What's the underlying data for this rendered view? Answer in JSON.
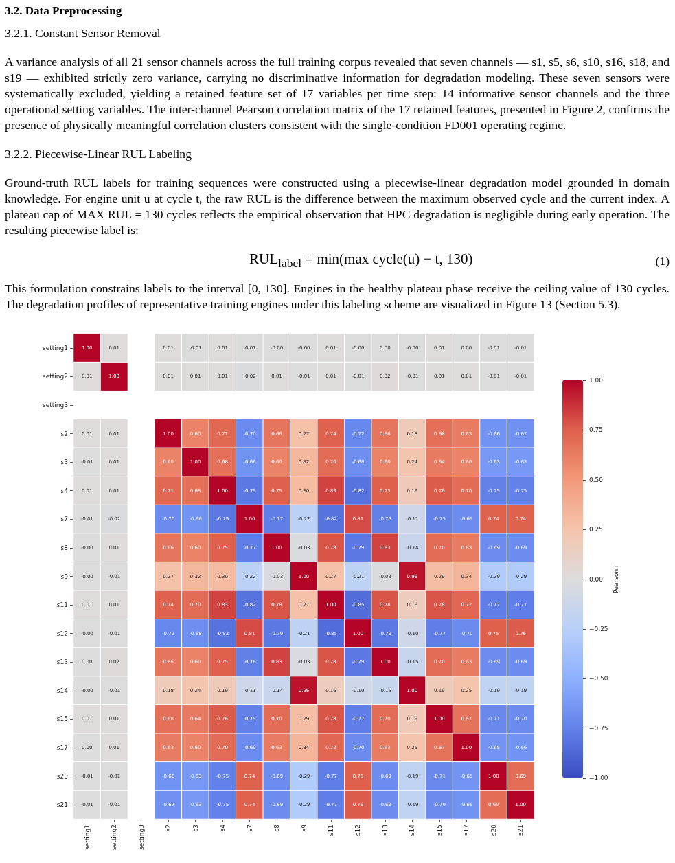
{
  "chart_data": {
    "type": "heatmap",
    "title": "3.2. Data Preprocessing",
    "annotations": [
      "3.2.1. Constant Sensor Removal",
      "A variance analysis of all 21 sensor channels across the full training corpus revealed that seven channels — s1, s5, s6, s10, s16, s18, and s19 — exhibited strictly zero variance, carrying no discriminative information for degradation modeling. These seven sensors were systematically excluded, yielding a retained feature set of 17 variables per time step: 14 informative sensor channels and the three operational setting variables. The inter-channel Pearson correlation matrix of the 17 retained features, presented in Figure 2, confirms the presence of physically meaningful correlation clusters consistent with the single-condition FD001 operating regime.",
      "3.2.2. Piecewise-Linear RUL Labeling",
      "Ground-truth RUL labels for training sequences were constructed using a piecewise-linear degradation model grounded in domain knowledge. For engine unit u at cycle t, the raw RUL is the difference between the maximum observed cycle and the current index. A plateau cap of MAX RUL = 130 cycles reflects the empirical observation that HPC degradation is negligible during early operation. The resulting piecewise label is:",
      "RUL$_{label}$ = min(max cycle(u) − t, 130)",
      "(1)",
      "This formulation constrains labels to the interval [0, 130]. Engines in the healthy plateau phase receive the ceiling value of 130 cycles. The degradation profiles of representative training engines under this labeling scheme are visualized in Figure 13 (Section 5.3)."
    ],
    "categories": [
      "setting1",
      "setting2",
      "setting3",
      "s2",
      "s3",
      "s4",
      "s7",
      "s8",
      "s9",
      "s11",
      "s12",
      "s13",
      "s14",
      "s15",
      "s17",
      "s20",
      "s21"
    ],
    "y_categories": [
      "setting1",
      "setting2",
      "setting3",
      "s2",
      "s3",
      "s4",
      "s7",
      "s8",
      "s9",
      "s11",
      "s12",
      "s13",
      "s14",
      "s15",
      "s17",
      "s20",
      "s21"
    ],
    "cells": [
      [
        1.0,
        0.01,
        null,
        0.01,
        -0.01,
        0.01,
        -0.01,
        0,
        0,
        0.01,
        0,
        0,
        0,
        0.01,
        0,
        -0.01,
        -0.01
      ],
      [
        0.01,
        1.0,
        null,
        0.01,
        0.01,
        0.01,
        -0.02,
        0.01,
        -0.01,
        0.01,
        -0.01,
        0.02,
        -0.01,
        0.01,
        0.01,
        -0.01,
        -0.01
      ],
      [
        null,
        null,
        null,
        null,
        null,
        null,
        null,
        null,
        null,
        null,
        null,
        null,
        null,
        null,
        null,
        null,
        null
      ],
      [
        0.01,
        0.01,
        null,
        1.0,
        0.6,
        0.71,
        -0.7,
        0.66,
        0.27,
        0.74,
        -0.72,
        0.66,
        0.18,
        0.68,
        0.63,
        -0.66,
        -0.67
      ],
      [
        -0.01,
        0.01,
        null,
        0.6,
        1.0,
        0.68,
        -0.66,
        0.6,
        0.32,
        0.7,
        -0.68,
        0.6,
        0.24,
        0.64,
        0.6,
        -0.63,
        -0.63
      ],
      [
        0.01,
        0.01,
        null,
        0.71,
        0.68,
        1.0,
        -0.79,
        0.75,
        0.3,
        0.83,
        -0.82,
        0.75,
        0.19,
        0.76,
        0.7,
        -0.75,
        -0.75
      ],
      [
        -0.01,
        -0.02,
        null,
        -0.7,
        -0.66,
        -0.79,
        1.0,
        -0.77,
        -0.22,
        -0.82,
        0.81,
        -0.76,
        -0.11,
        -0.75,
        -0.69,
        0.74,
        0.74
      ],
      [
        0,
        0.01,
        null,
        0.66,
        0.6,
        0.75,
        -0.77,
        1.0,
        -0.03,
        0.78,
        -0.79,
        0.83,
        -0.14,
        0.7,
        0.63,
        -0.69,
        -0.69
      ],
      [
        0,
        -0.01,
        null,
        0.27,
        0.32,
        0.3,
        -0.22,
        -0.03,
        1.0,
        0.27,
        -0.21,
        -0.03,
        0.96,
        0.29,
        0.34,
        -0.29,
        -0.29
      ],
      [
        0.01,
        0.01,
        null,
        0.74,
        0.7,
        0.83,
        -0.82,
        0.78,
        0.27,
        1.0,
        -0.85,
        0.78,
        0.16,
        0.78,
        0.72,
        -0.77,
        -0.77
      ],
      [
        0,
        -0.01,
        null,
        -0.72,
        -0.68,
        -0.82,
        0.81,
        -0.79,
        -0.21,
        -0.85,
        1.0,
        -0.79,
        -0.1,
        -0.77,
        -0.7,
        0.75,
        0.76
      ],
      [
        0,
        0.02,
        null,
        0.66,
        0.6,
        0.75,
        -0.76,
        0.83,
        -0.03,
        0.78,
        -0.79,
        1.0,
        -0.15,
        0.7,
        0.63,
        -0.69,
        -0.69
      ],
      [
        0,
        -0.01,
        null,
        0.18,
        0.24,
        0.19,
        -0.11,
        -0.14,
        0.96,
        0.16,
        -0.1,
        -0.15,
        1.0,
        0.19,
        0.25,
        -0.19,
        -0.19
      ],
      [
        0.01,
        0.01,
        null,
        0.68,
        0.64,
        0.76,
        -0.75,
        0.7,
        0.29,
        0.78,
        -0.77,
        0.7,
        0.19,
        1.0,
        0.67,
        -0.71,
        -0.7
      ],
      [
        0,
        0.01,
        null,
        0.63,
        0.6,
        0.7,
        -0.69,
        0.63,
        0.34,
        0.72,
        -0.7,
        0.63,
        0.25,
        0.67,
        1.0,
        -0.65,
        -0.66
      ],
      [
        -0.01,
        -0.01,
        null,
        -0.66,
        -0.63,
        -0.75,
        0.74,
        -0.69,
        -0.29,
        -0.77,
        0.75,
        -0.69,
        -0.19,
        -0.71,
        -0.65,
        1.0,
        0.69
      ],
      [
        -0.01,
        -0.01,
        null,
        -0.67,
        -0.63,
        -0.75,
        0.74,
        -0.69,
        -0.29,
        -0.77,
        0.76,
        -0.69,
        -0.19,
        -0.7,
        -0.66,
        0.69,
        1.0
      ]
    ],
    "cell_labels": [
      [
        "1.00",
        "0.01",
        null,
        "0.01",
        "-0.01",
        "0.01",
        "-0.01",
        "-0.00",
        "-0.00",
        "0.01",
        "-0.00",
        "0.00",
        "-0.00",
        "0.01",
        "0.00",
        "-0.01",
        "-0.01"
      ],
      [
        "0.01",
        "1.00",
        null,
        "0.01",
        "0.01",
        "0.01",
        "-0.02",
        "0.01",
        "-0.01",
        "0.01",
        "-0.01",
        "0.02",
        "-0.01",
        "0.01",
        "0.01",
        "-0.01",
        "-0.01"
      ],
      [
        null,
        null,
        null,
        null,
        null,
        null,
        null,
        null,
        null,
        null,
        null,
        null,
        null,
        null,
        null,
        null,
        null
      ],
      [
        "0.01",
        "0.01",
        null,
        "1.00",
        "0.60",
        "0.71",
        "-0.70",
        "0.66",
        "0.27",
        "0.74",
        "-0.72",
        "0.66",
        "0.18",
        "0.68",
        "0.63",
        "-0.66",
        "-0.67"
      ],
      [
        "-0.01",
        "0.01",
        null,
        "0.60",
        "1.00",
        "0.68",
        "-0.66",
        "0.60",
        "0.32",
        "0.70",
        "-0.68",
        "0.60",
        "0.24",
        "0.64",
        "0.60",
        "-0.63",
        "-0.63"
      ],
      [
        "0.01",
        "0.01",
        null,
        "0.71",
        "0.68",
        "1.00",
        "-0.79",
        "0.75",
        "0.30",
        "0.83",
        "-0.82",
        "0.75",
        "0.19",
        "0.76",
        "0.70",
        "-0.75",
        "-0.75"
      ],
      [
        "-0.01",
        "-0.02",
        null,
        "-0.70",
        "-0.66",
        "-0.79",
        "1.00",
        "-0.77",
        "-0.22",
        "-0.82",
        "0.81",
        "-0.76",
        "-0.11",
        "-0.75",
        "-0.69",
        "0.74",
        "0.74"
      ],
      [
        "-0.00",
        "0.01",
        null,
        "0.66",
        "0.60",
        "0.75",
        "-0.77",
        "1.00",
        "-0.03",
        "0.78",
        "-0.79",
        "0.83",
        "-0.14",
        "0.70",
        "0.63",
        "-0.69",
        "-0.69"
      ],
      [
        "-0.00",
        "-0.01",
        null,
        "0.27",
        "0.32",
        "0.30",
        "-0.22",
        "-0.03",
        "1.00",
        "0.27",
        "-0.21",
        "-0.03",
        "0.96",
        "0.29",
        "0.34",
        "-0.29",
        "-0.29"
      ],
      [
        "0.01",
        "0.01",
        null,
        "0.74",
        "0.70",
        "0.83",
        "-0.82",
        "0.78",
        "0.27",
        "1.00",
        "-0.85",
        "0.78",
        "0.16",
        "0.78",
        "0.72",
        "-0.77",
        "-0.77"
      ],
      [
        "-0.00",
        "-0.01",
        null,
        "-0.72",
        "-0.68",
        "-0.82",
        "0.81",
        "-0.79",
        "-0.21",
        "-0.85",
        "1.00",
        "-0.79",
        "-0.10",
        "-0.77",
        "-0.70",
        "0.75",
        "0.76"
      ],
      [
        "0.00",
        "0.02",
        null,
        "0.66",
        "0.60",
        "0.75",
        "-0.76",
        "0.83",
        "-0.03",
        "0.78",
        "-0.79",
        "1.00",
        "-0.15",
        "0.70",
        "0.63",
        "-0.69",
        "-0.69"
      ],
      [
        "-0.00",
        "-0.01",
        null,
        "0.18",
        "0.24",
        "0.19",
        "-0.11",
        "-0.14",
        "0.96",
        "0.16",
        "-0.10",
        "-0.15",
        "1.00",
        "0.19",
        "0.25",
        "-0.19",
        "-0.19"
      ],
      [
        "0.01",
        "0.01",
        null,
        "0.68",
        "0.64",
        "0.76",
        "-0.75",
        "0.70",
        "0.29",
        "0.78",
        "-0.77",
        "0.70",
        "0.19",
        "1.00",
        "0.67",
        "-0.71",
        "-0.70"
      ],
      [
        "0.00",
        "0.01",
        null,
        "0.63",
        "0.60",
        "0.70",
        "-0.69",
        "0.63",
        "0.34",
        "0.72",
        "-0.70",
        "0.63",
        "0.25",
        "0.67",
        "1.00",
        "-0.65",
        "-0.66"
      ],
      [
        "-0.01",
        "-0.01",
        null,
        "-0.66",
        "-0.63",
        "-0.75",
        "0.74",
        "-0.69",
        "-0.29",
        "-0.77",
        "0.75",
        "-0.69",
        "-0.19",
        "-0.71",
        "-0.65",
        "1.00",
        "0.69"
      ],
      [
        "-0.01",
        "-0.01",
        null,
        "-0.67",
        "-0.63",
        "-0.75",
        "0.74",
        "-0.69",
        "-0.29",
        "-0.77",
        "0.76",
        "-0.69",
        "-0.19",
        "-0.70",
        "-0.66",
        "0.69",
        "1.00"
      ]
    ],
    "clim": [
      -1,
      1
    ],
    "cticks": [
      {
        "value": 1,
        "label": "1.00"
      },
      {
        "value": 0.75,
        "label": "0.75"
      },
      {
        "value": 0.5,
        "label": "0.50"
      },
      {
        "value": 0.25,
        "label": "0.25"
      },
      {
        "value": 0,
        "label": "0.00"
      },
      {
        "value": -0.25,
        "label": "−0.25"
      },
      {
        "value": -0.5,
        "label": "−0.50"
      },
      {
        "value": -0.75,
        "label": "−0.75"
      },
      {
        "value": -1,
        "label": "−1.00"
      }
    ],
    "clabel": "Pearson r"
  }
}
